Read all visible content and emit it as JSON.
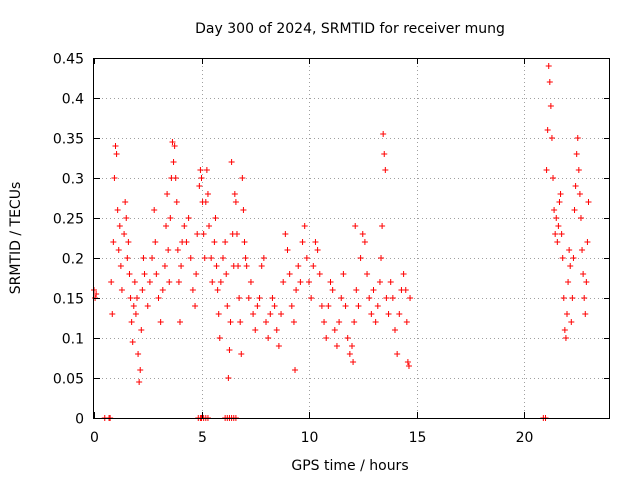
{
  "chart_data": {
    "type": "scatter",
    "title": "Day 300 of 2024, SRMTID for receiver mung",
    "xlabel": "GPS time / hours",
    "ylabel": "SRMTID / TECUs",
    "xlim": [
      0,
      24
    ],
    "ylim": [
      0,
      0.45
    ],
    "xticks": [
      0,
      5,
      10,
      15,
      20
    ],
    "xtick_labels": [
      "0",
      "5",
      "10",
      "15",
      "20"
    ],
    "yticks": [
      0,
      0.05,
      0.1,
      0.15,
      0.2,
      0.25,
      0.3,
      0.35,
      0.4,
      0.45
    ],
    "ytick_labels": [
      "0",
      "0.05",
      "0.1",
      "0.15",
      "0.2",
      "0.25",
      "0.3",
      "0.35",
      "0.4",
      "0.45"
    ],
    "grid": true,
    "marker": "+",
    "marker_color": "#ff0000",
    "series": [
      {
        "name": "SRMTID",
        "points": [
          [
            0.0,
            0.16
          ],
          [
            0.1,
            0.155
          ],
          [
            0.05,
            0.15
          ],
          [
            0.5,
            0.0
          ],
          [
            0.7,
            0.0
          ],
          [
            0.75,
            0.0
          ],
          [
            0.8,
            0.17
          ],
          [
            0.85,
            0.13
          ],
          [
            0.9,
            0.22
          ],
          [
            0.95,
            0.3
          ],
          [
            1.0,
            0.34
          ],
          [
            1.05,
            0.33
          ],
          [
            1.1,
            0.26
          ],
          [
            1.15,
            0.21
          ],
          [
            1.2,
            0.24
          ],
          [
            1.25,
            0.19
          ],
          [
            1.3,
            0.16
          ],
          [
            1.4,
            0.23
          ],
          [
            1.45,
            0.27
          ],
          [
            1.5,
            0.25
          ],
          [
            1.55,
            0.2
          ],
          [
            1.6,
            0.22
          ],
          [
            1.65,
            0.18
          ],
          [
            1.7,
            0.15
          ],
          [
            1.75,
            0.12
          ],
          [
            1.8,
            0.095
          ],
          [
            1.85,
            0.14
          ],
          [
            1.9,
            0.17
          ],
          [
            1.95,
            0.13
          ],
          [
            2.0,
            0.15
          ],
          [
            2.05,
            0.08
          ],
          [
            2.1,
            0.045
          ],
          [
            2.15,
            0.06
          ],
          [
            2.2,
            0.11
          ],
          [
            2.25,
            0.16
          ],
          [
            2.3,
            0.2
          ],
          [
            2.35,
            0.18
          ],
          [
            2.5,
            0.14
          ],
          [
            2.6,
            0.17
          ],
          [
            2.7,
            0.2
          ],
          [
            2.8,
            0.26
          ],
          [
            2.85,
            0.22
          ],
          [
            2.9,
            0.18
          ],
          [
            3.0,
            0.15
          ],
          [
            3.1,
            0.12
          ],
          [
            3.2,
            0.16
          ],
          [
            3.3,
            0.19
          ],
          [
            3.35,
            0.24
          ],
          [
            3.4,
            0.28
          ],
          [
            3.45,
            0.21
          ],
          [
            3.5,
            0.17
          ],
          [
            3.55,
            0.25
          ],
          [
            3.6,
            0.3
          ],
          [
            3.65,
            0.345
          ],
          [
            3.7,
            0.32
          ],
          [
            3.75,
            0.34
          ],
          [
            3.8,
            0.3
          ],
          [
            3.85,
            0.27
          ],
          [
            3.9,
            0.21
          ],
          [
            3.95,
            0.17
          ],
          [
            4.0,
            0.12
          ],
          [
            4.05,
            0.19
          ],
          [
            4.1,
            0.22
          ],
          [
            4.2,
            0.24
          ],
          [
            4.3,
            0.22
          ],
          [
            4.4,
            0.25
          ],
          [
            4.5,
            0.2
          ],
          [
            4.6,
            0.16
          ],
          [
            4.7,
            0.14
          ],
          [
            4.75,
            0.18
          ],
          [
            4.8,
            0.23
          ],
          [
            4.85,
            0.0
          ],
          [
            4.95,
            0.0
          ],
          [
            5.0,
            0.0
          ],
          [
            5.1,
            0.0
          ],
          [
            5.2,
            0.0
          ],
          [
            5.3,
            0.0
          ],
          [
            4.9,
            0.29
          ],
          [
            4.95,
            0.31
          ],
          [
            5.0,
            0.3
          ],
          [
            5.05,
            0.27
          ],
          [
            5.1,
            0.23
          ],
          [
            5.15,
            0.2
          ],
          [
            5.2,
            0.27
          ],
          [
            5.25,
            0.31
          ],
          [
            5.3,
            0.28
          ],
          [
            5.35,
            0.24
          ],
          [
            5.45,
            0.2
          ],
          [
            5.5,
            0.17
          ],
          [
            5.6,
            0.22
          ],
          [
            5.65,
            0.25
          ],
          [
            5.7,
            0.19
          ],
          [
            5.75,
            0.16
          ],
          [
            5.8,
            0.13
          ],
          [
            5.85,
            0.1
          ],
          [
            5.9,
            0.17
          ],
          [
            6.0,
            0.2
          ],
          [
            6.1,
            0.22
          ],
          [
            6.15,
            0.18
          ],
          [
            6.2,
            0.14
          ],
          [
            6.1,
            0.0
          ],
          [
            6.2,
            0.0
          ],
          [
            6.3,
            0.0
          ],
          [
            6.4,
            0.0
          ],
          [
            6.5,
            0.0
          ],
          [
            6.6,
            0.0
          ],
          [
            6.25,
            0.05
          ],
          [
            6.3,
            0.085
          ],
          [
            6.35,
            0.12
          ],
          [
            6.4,
            0.32
          ],
          [
            6.45,
            0.23
          ],
          [
            6.5,
            0.19
          ],
          [
            6.55,
            0.28
          ],
          [
            6.6,
            0.27
          ],
          [
            6.65,
            0.23
          ],
          [
            6.7,
            0.19
          ],
          [
            6.75,
            0.15
          ],
          [
            6.8,
            0.12
          ],
          [
            6.85,
            0.08
          ],
          [
            6.9,
            0.3
          ],
          [
            6.95,
            0.26
          ],
          [
            7.0,
            0.22
          ],
          [
            7.05,
            0.2
          ],
          [
            7.1,
            0.19
          ],
          [
            7.2,
            0.15
          ],
          [
            7.3,
            0.17
          ],
          [
            7.4,
            0.13
          ],
          [
            7.5,
            0.11
          ],
          [
            7.6,
            0.14
          ],
          [
            7.7,
            0.15
          ],
          [
            7.8,
            0.19
          ],
          [
            7.9,
            0.2
          ],
          [
            8.0,
            0.12
          ],
          [
            8.1,
            0.1
          ],
          [
            8.2,
            0.13
          ],
          [
            8.3,
            0.15
          ],
          [
            8.4,
            0.14
          ],
          [
            8.5,
            0.11
          ],
          [
            8.6,
            0.09
          ],
          [
            8.7,
            0.13
          ],
          [
            8.8,
            0.17
          ],
          [
            8.9,
            0.23
          ],
          [
            9.0,
            0.21
          ],
          [
            9.1,
            0.18
          ],
          [
            9.2,
            0.14
          ],
          [
            9.3,
            0.12
          ],
          [
            9.35,
            0.06
          ],
          [
            9.4,
            0.16
          ],
          [
            9.5,
            0.19
          ],
          [
            9.6,
            0.17
          ],
          [
            9.7,
            0.22
          ],
          [
            9.8,
            0.24
          ],
          [
            9.9,
            0.2
          ],
          [
            10.0,
            0.17
          ],
          [
            10.1,
            0.15
          ],
          [
            10.2,
            0.19
          ],
          [
            10.3,
            0.22
          ],
          [
            10.4,
            0.21
          ],
          [
            10.5,
            0.18
          ],
          [
            10.6,
            0.14
          ],
          [
            10.7,
            0.12
          ],
          [
            10.8,
            0.1
          ],
          [
            10.9,
            0.14
          ],
          [
            11.0,
            0.17
          ],
          [
            11.1,
            0.16
          ],
          [
            11.2,
            0.11
          ],
          [
            11.3,
            0.09
          ],
          [
            11.4,
            0.12
          ],
          [
            11.5,
            0.15
          ],
          [
            11.6,
            0.18
          ],
          [
            11.7,
            0.14
          ],
          [
            11.8,
            0.1
          ],
          [
            11.9,
            0.08
          ],
          [
            12.0,
            0.09
          ],
          [
            12.05,
            0.07
          ],
          [
            12.1,
            0.12
          ],
          [
            12.15,
            0.24
          ],
          [
            12.2,
            0.16
          ],
          [
            12.3,
            0.14
          ],
          [
            12.4,
            0.2
          ],
          [
            12.5,
            0.23
          ],
          [
            12.6,
            0.22
          ],
          [
            12.7,
            0.18
          ],
          [
            12.8,
            0.15
          ],
          [
            12.9,
            0.13
          ],
          [
            13.0,
            0.16
          ],
          [
            13.1,
            0.12
          ],
          [
            13.2,
            0.14
          ],
          [
            13.3,
            0.17
          ],
          [
            13.35,
            0.2
          ],
          [
            13.4,
            0.24
          ],
          [
            13.45,
            0.355
          ],
          [
            13.5,
            0.33
          ],
          [
            13.55,
            0.31
          ],
          [
            13.6,
            0.15
          ],
          [
            13.7,
            0.13
          ],
          [
            13.8,
            0.17
          ],
          [
            13.9,
            0.15
          ],
          [
            14.0,
            0.11
          ],
          [
            14.1,
            0.08
          ],
          [
            14.2,
            0.13
          ],
          [
            14.3,
            0.16
          ],
          [
            14.4,
            0.18
          ],
          [
            14.5,
            0.16
          ],
          [
            14.55,
            0.12
          ],
          [
            14.6,
            0.07
          ],
          [
            14.65,
            0.065
          ],
          [
            14.7,
            0.15
          ],
          [
            20.9,
            0.0
          ],
          [
            21.0,
            0.0
          ],
          [
            21.05,
            0.31
          ],
          [
            21.1,
            0.36
          ],
          [
            21.15,
            0.44
          ],
          [
            21.2,
            0.42
          ],
          [
            21.25,
            0.39
          ],
          [
            21.3,
            0.35
          ],
          [
            21.35,
            0.3
          ],
          [
            21.4,
            0.26
          ],
          [
            21.45,
            0.23
          ],
          [
            21.5,
            0.25
          ],
          [
            21.55,
            0.22
          ],
          [
            21.6,
            0.24
          ],
          [
            21.65,
            0.27
          ],
          [
            21.7,
            0.28
          ],
          [
            21.75,
            0.23
          ],
          [
            21.8,
            0.2
          ],
          [
            21.85,
            0.15
          ],
          [
            21.9,
            0.11
          ],
          [
            21.95,
            0.1
          ],
          [
            22.0,
            0.13
          ],
          [
            22.05,
            0.17
          ],
          [
            22.1,
            0.21
          ],
          [
            22.15,
            0.19
          ],
          [
            22.2,
            0.12
          ],
          [
            22.25,
            0.15
          ],
          [
            22.3,
            0.2
          ],
          [
            22.35,
            0.26
          ],
          [
            22.4,
            0.29
          ],
          [
            22.45,
            0.33
          ],
          [
            22.5,
            0.35
          ],
          [
            22.55,
            0.31
          ],
          [
            22.6,
            0.28
          ],
          [
            22.65,
            0.25
          ],
          [
            22.7,
            0.21
          ],
          [
            22.75,
            0.18
          ],
          [
            22.8,
            0.15
          ],
          [
            22.85,
            0.13
          ],
          [
            22.9,
            0.17
          ],
          [
            22.95,
            0.22
          ],
          [
            23.0,
            0.27
          ]
        ]
      }
    ]
  }
}
